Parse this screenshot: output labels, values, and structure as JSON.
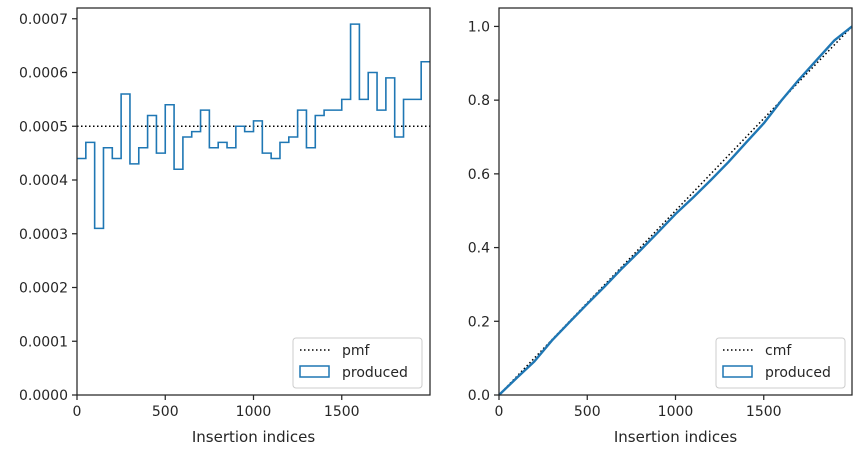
{
  "chart_data": [
    {
      "type": "histogram",
      "xlabel": "Insertion indices",
      "ylabel": "",
      "xlim": [
        0,
        2000
      ],
      "ylim": [
        0,
        0.00072
      ],
      "xticks": [
        0,
        500,
        1000,
        1500
      ],
      "xtick_labels": [
        "0",
        "500",
        "1000",
        "1500"
      ],
      "yticks": [
        0,
        0.0001,
        0.0002,
        0.0003,
        0.0004,
        0.0005,
        0.0006,
        0.0007
      ],
      "ytick_labels": [
        "0.0000",
        "0.0001",
        "0.0002",
        "0.0003",
        "0.0004",
        "0.0005",
        "0.0006",
        "0.0007"
      ],
      "legend_position": "lower-right",
      "reference_line": {
        "label": "pmf",
        "value": 0.0005,
        "style": "dotted",
        "color": "#000000"
      },
      "series": [
        {
          "name": "produced",
          "style": "step",
          "color": "#1f77b4",
          "bin_width": 50,
          "bin_edges_start": 0,
          "values": [
            0.00044,
            0.00047,
            0.00031,
            0.00046,
            0.00044,
            0.00056,
            0.00043,
            0.00046,
            0.00052,
            0.00045,
            0.00054,
            0.00042,
            0.00048,
            0.00049,
            0.00053,
            0.00046,
            0.00047,
            0.00046,
            0.0005,
            0.00049,
            0.00051,
            0.00045,
            0.00044,
            0.00047,
            0.00048,
            0.00053,
            0.00046,
            0.00052,
            0.00053,
            0.00053,
            0.00055,
            0.00069,
            0.00055,
            0.0006,
            0.00053,
            0.00059,
            0.00048,
            0.00055,
            0.00055,
            0.00062
          ]
        }
      ]
    },
    {
      "type": "line",
      "xlabel": "Insertion indices",
      "ylabel": "",
      "xlim": [
        0,
        2000
      ],
      "ylim": [
        0,
        1.05
      ],
      "xticks": [
        0,
        500,
        1000,
        1500
      ],
      "xtick_labels": [
        "0",
        "500",
        "1000",
        "1500"
      ],
      "yticks": [
        0,
        0.2,
        0.4,
        0.6,
        0.8,
        1.0
      ],
      "ytick_labels": [
        "0.0",
        "0.2",
        "0.4",
        "0.6",
        "0.8",
        "1.0"
      ],
      "legend_position": "lower-right",
      "reference_line": {
        "label": "cmf",
        "from": [
          0,
          0
        ],
        "to": [
          2000,
          1
        ],
        "style": "dotted",
        "color": "#000000"
      },
      "series": [
        {
          "name": "produced",
          "style": "step-cumulative",
          "color": "#1f77b4",
          "x": [
            0,
            100,
            200,
            300,
            400,
            500,
            600,
            700,
            800,
            900,
            1000,
            1100,
            1200,
            1300,
            1400,
            1500,
            1600,
            1700,
            1800,
            1900,
            2000
          ],
          "y": [
            0,
            0.046,
            0.091,
            0.148,
            0.198,
            0.247,
            0.295,
            0.345,
            0.392,
            0.441,
            0.491,
            0.536,
            0.583,
            0.632,
            0.685,
            0.737,
            0.799,
            0.856,
            0.909,
            0.962,
            1.0
          ]
        }
      ]
    }
  ]
}
